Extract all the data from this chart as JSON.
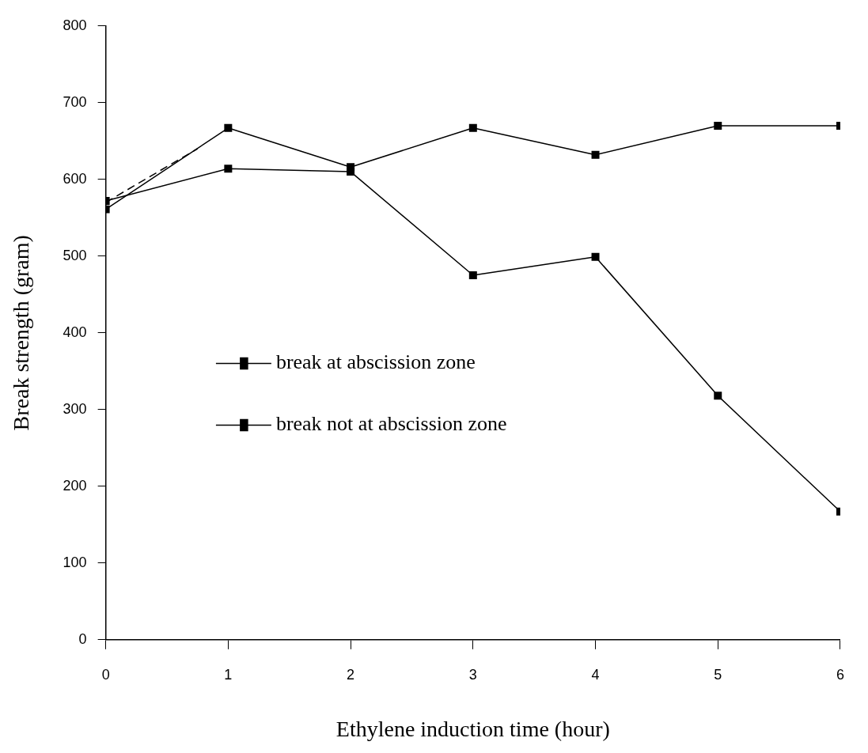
{
  "chart_data": {
    "type": "line",
    "xlabel": "Ethylene induction time (hour)",
    "ylabel": "Break strength (gram)",
    "x": [
      0,
      1,
      2,
      3,
      4,
      5,
      6
    ],
    "xlim": [
      0,
      6
    ],
    "xticks": [
      0,
      1,
      2,
      3,
      4,
      5,
      6
    ],
    "ylim": [
      0,
      800
    ],
    "yticks": [
      0,
      100,
      200,
      300,
      400,
      500,
      600,
      700,
      800
    ],
    "grid": false,
    "legend": "center left",
    "marker": "square",
    "line_style": "solid",
    "series": [
      {
        "name": "break at abscission zone",
        "color": "#000000",
        "values": [
          572,
          614,
          610,
          475,
          499,
          318,
          167
        ]
      },
      {
        "name": "break not at abscission zone",
        "color": "#000000",
        "values": [
          561,
          667,
          616,
          667,
          632,
          670,
          670
        ]
      },
      {
        "color": "#000000",
        "x": [
          0,
          0.75
        ],
        "values": [
          570,
          640
        ],
        "marker": "none",
        "line_style": "dashed"
      }
    ]
  }
}
